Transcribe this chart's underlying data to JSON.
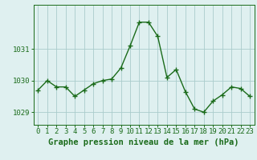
{
  "x": [
    0,
    1,
    2,
    3,
    4,
    5,
    6,
    7,
    8,
    9,
    10,
    11,
    12,
    13,
    14,
    15,
    16,
    17,
    18,
    19,
    20,
    21,
    22,
    23
  ],
  "y": [
    1029.7,
    1030.0,
    1029.8,
    1029.8,
    1029.5,
    1029.7,
    1029.9,
    1030.0,
    1030.05,
    1030.4,
    1031.1,
    1031.85,
    1031.85,
    1031.4,
    1030.1,
    1030.35,
    1029.65,
    1029.1,
    1029.0,
    1029.35,
    1029.55,
    1029.8,
    1029.75,
    1029.5
  ],
  "line_color": "#1a6b1a",
  "marker_color": "#1a6b1a",
  "bg_color": "#dff0f0",
  "grid_color": "#aacccc",
  "axis_color": "#1a6b1a",
  "xlabel": "Graphe pression niveau de la mer (hPa)",
  "xlabel_fontsize": 7.5,
  "tick_fontsize": 6.5,
  "ylim_min": 1028.6,
  "ylim_max": 1032.4,
  "yticks": [
    1029,
    1030,
    1031
  ],
  "xticks": [
    0,
    1,
    2,
    3,
    4,
    5,
    6,
    7,
    8,
    9,
    10,
    11,
    12,
    13,
    14,
    15,
    16,
    17,
    18,
    19,
    20,
    21,
    22,
    23
  ]
}
